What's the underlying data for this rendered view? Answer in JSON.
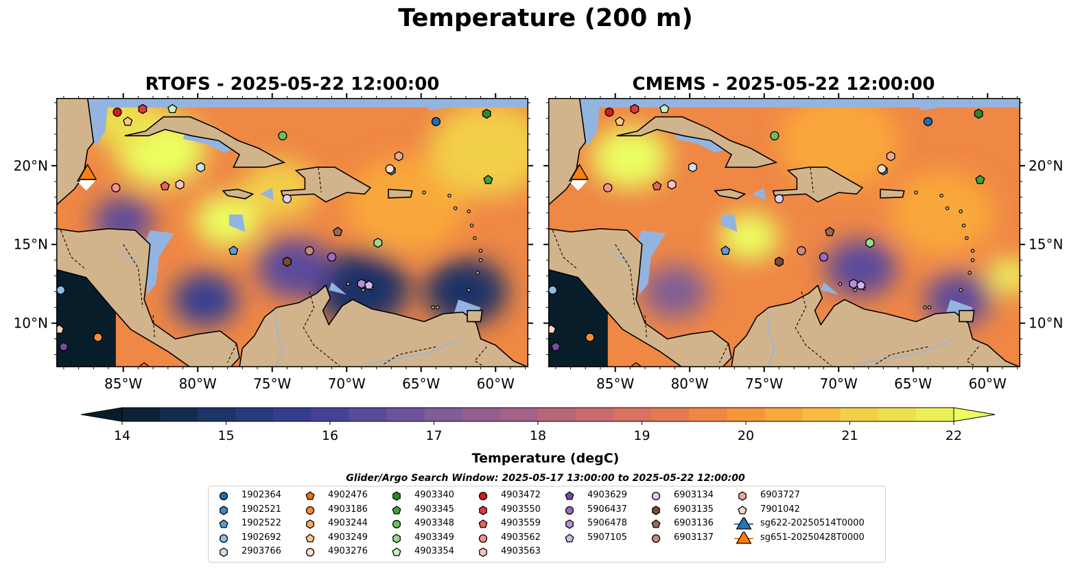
{
  "suptitle": "Temperature (200 m)",
  "panels": [
    {
      "title": "RTOFS - 2025-05-22 12:00:00"
    },
    {
      "title": "CMEMS - 2025-05-22 12:00:00"
    }
  ],
  "axes": {
    "lon_ticks": [
      "85°W",
      "80°W",
      "75°W",
      "70°W",
      "65°W",
      "60°W"
    ],
    "lat_ticks": [
      "20°N",
      "15°N",
      "10°N"
    ]
  },
  "colorbar": {
    "label": "Temperature (degC)",
    "ticks": [
      "14",
      "15",
      "16",
      "17",
      "18",
      "19",
      "20",
      "21",
      "22"
    ],
    "colors": [
      "#0b2236",
      "#132b4d",
      "#1c3366",
      "#273a80",
      "#353d92",
      "#47409a",
      "#5a4a9c",
      "#6d549a",
      "#7f5d96",
      "#925f8f",
      "#a46386",
      "#b6667a",
      "#c76c6e",
      "#d97260",
      "#e57a52",
      "#ef8745",
      "#f6963b",
      "#f9a83b",
      "#f8bc40",
      "#f2cf48",
      "#ecdf50",
      "#ebf05a"
    ],
    "extend_low": "#071e2a",
    "extend_high": "#ebff60"
  },
  "search_window": "Glider/Argo Search Window: 2025-05-17 13:00:00 to 2025-05-22 12:00:00",
  "legend": {
    "columns": [
      [
        {
          "label": "1902364",
          "marker": "circle",
          "color": "#1f6db0"
        },
        {
          "label": "1902521",
          "marker": "hexagon",
          "color": "#3d88c6"
        },
        {
          "label": "1902522",
          "marker": "pentagon",
          "color": "#5a9ed4"
        },
        {
          "label": "1902692",
          "marker": "circle",
          "color": "#8ebde6"
        },
        {
          "label": "2903766",
          "marker": "hexagon",
          "color": "#c9e1f4"
        }
      ],
      [
        {
          "label": "4902476",
          "marker": "pentagon",
          "color": "#ec7014"
        },
        {
          "label": "4903186",
          "marker": "circle",
          "color": "#f58c33"
        },
        {
          "label": "4903244",
          "marker": "hexagon",
          "color": "#f8a85c"
        },
        {
          "label": "4903249",
          "marker": "pentagon",
          "color": "#fbc68b"
        },
        {
          "label": "4903276",
          "marker": "circle",
          "color": "#fde0bd"
        }
      ],
      [
        {
          "label": "4903340",
          "marker": "hexagon",
          "color": "#2a8a2a"
        },
        {
          "label": "4903345",
          "marker": "pentagon",
          "color": "#3fa03f"
        },
        {
          "label": "4903348",
          "marker": "circle",
          "color": "#66c15d"
        },
        {
          "label": "4903349",
          "marker": "hexagon",
          "color": "#9ad990"
        },
        {
          "label": "4903354",
          "marker": "pentagon",
          "color": "#c8efc0"
        }
      ],
      [
        {
          "label": "4903472",
          "marker": "circle",
          "color": "#d01c21"
        },
        {
          "label": "4903550",
          "marker": "hexagon",
          "color": "#e0393a"
        },
        {
          "label": "4903559",
          "marker": "pentagon",
          "color": "#ec5f5c"
        },
        {
          "label": "4903562",
          "marker": "circle",
          "color": "#f59290"
        },
        {
          "label": "4903563",
          "marker": "hexagon",
          "color": "#fbc4c3"
        }
      ],
      [
        {
          "label": "4903629",
          "marker": "pentagon",
          "color": "#7a48a6"
        },
        {
          "label": "5906437",
          "marker": "circle",
          "color": "#9b6bc2"
        },
        {
          "label": "5906478",
          "marker": "hexagon",
          "color": "#b48fd8"
        },
        {
          "label": "5907105",
          "marker": "pentagon",
          "color": "#d0b7ea"
        }
      ],
      [
        {
          "label": "6903134",
          "marker": "circle",
          "color": "#e3cdf4"
        },
        {
          "label": "6903135",
          "marker": "hexagon",
          "color": "#7a4a38"
        },
        {
          "label": "6903136",
          "marker": "pentagon",
          "color": "#9b6a56"
        },
        {
          "label": "6903137",
          "marker": "circle",
          "color": "#c98a7a"
        }
      ],
      [
        {
          "label": "6903727",
          "marker": "hexagon",
          "color": "#e8aa92"
        },
        {
          "label": "7901042",
          "marker": "pentagon",
          "color": "#fbd6c8"
        },
        {
          "label": "sg622-20250514T0000",
          "marker": "triangle",
          "color": "#1f77b4"
        },
        {
          "label": "sg651-20250428T0000",
          "marker": "triangle",
          "color": "#ff7f0e"
        }
      ]
    ]
  },
  "chart_data": {
    "type": "heatmap",
    "variable": "Temperature",
    "units": "degC",
    "depth_m": 200,
    "colorbar_range": [
      14,
      22
    ],
    "lon_range": [
      -89.5,
      -57.8
    ],
    "lat_range": [
      7.2,
      24.3
    ],
    "maps": [
      {
        "model": "RTOFS",
        "time": "2025-05-22 12:00:00",
        "warm_cores": [
          {
            "lon": -82.5,
            "lat": 21.0,
            "temp": 22,
            "spread_deg": 3.0
          },
          {
            "lon": -78.0,
            "lat": 16.5,
            "temp": 22,
            "spread_deg": 2.2
          },
          {
            "lon": -74.5,
            "lat": 18.5,
            "temp": 21,
            "spread_deg": 2.5
          },
          {
            "lon": -66.0,
            "lat": 17.5,
            "temp": 20.5,
            "spread_deg": 4.0
          },
          {
            "lon": -60.5,
            "lat": 21.0,
            "temp": 21,
            "spread_deg": 4.0
          },
          {
            "lon": -85.0,
            "lat": 23.0,
            "temp": 21.5,
            "spread_deg": 2.5
          }
        ],
        "cool_cores": [
          {
            "lon": -79.5,
            "lat": 11.5,
            "temp": 15.5,
            "spread_deg": 2.2
          },
          {
            "lon": -69.0,
            "lat": 12.2,
            "temp": 15.0,
            "spread_deg": 3.2
          },
          {
            "lon": -62.0,
            "lat": 12.0,
            "temp": 15.0,
            "spread_deg": 2.8
          },
          {
            "lon": -73.5,
            "lat": 13.5,
            "temp": 16.5,
            "spread_deg": 2.5
          },
          {
            "lon": -85.0,
            "lat": 16.5,
            "temp": 16.5,
            "spread_deg": 2.0
          }
        ]
      },
      {
        "model": "CMEMS",
        "time": "2025-05-22 12:00:00",
        "warm_cores": [
          {
            "lon": -84.0,
            "lat": 20.5,
            "temp": 22,
            "spread_deg": 2.6
          },
          {
            "lon": -76.0,
            "lat": 15.5,
            "temp": 22,
            "spread_deg": 2.0
          },
          {
            "lon": -58.5,
            "lat": 13.0,
            "temp": 22,
            "spread_deg": 1.4
          },
          {
            "lon": -70.0,
            "lat": 21.5,
            "temp": 20.5,
            "spread_deg": 4.0
          },
          {
            "lon": -63.0,
            "lat": 17.0,
            "temp": 20.5,
            "spread_deg": 3.5
          }
        ],
        "cool_cores": [
          {
            "lon": -68.5,
            "lat": 13.5,
            "temp": 16.5,
            "spread_deg": 2.4
          },
          {
            "lon": -81.0,
            "lat": 12.0,
            "temp": 17.0,
            "spread_deg": 2.2
          },
          {
            "lon": -62.0,
            "lat": 11.5,
            "temp": 16.5,
            "spread_deg": 2.2
          }
        ]
      }
    ],
    "floats": [
      {
        "id": "1902364",
        "lon": -64.0,
        "lat": 22.8
      },
      {
        "id": "1902521",
        "lon": -67.0,
        "lat": 19.7
      },
      {
        "id": "1902522",
        "lon": -77.6,
        "lat": 14.6
      },
      {
        "id": "1902692",
        "lon": -89.2,
        "lat": 12.1
      },
      {
        "id": "2903766",
        "lon": -79.8,
        "lat": 19.9
      },
      {
        "id": "4902476",
        "lon": -83.6,
        "lat": 7.2
      },
      {
        "id": "4903186",
        "lon": -86.7,
        "lat": 9.1
      },
      {
        "id": "4903244",
        "lon": -74.0,
        "lat": 13.9
      },
      {
        "id": "4903249",
        "lon": -84.7,
        "lat": 22.8
      },
      {
        "id": "4903276",
        "lon": -67.1,
        "lat": 19.8
      },
      {
        "id": "4903340",
        "lon": -60.6,
        "lat": 23.3
      },
      {
        "id": "4903345",
        "lon": -60.5,
        "lat": 19.1
      },
      {
        "id": "4903348",
        "lon": -74.3,
        "lat": 21.9
      },
      {
        "id": "4903349",
        "lon": -67.9,
        "lat": 15.1
      },
      {
        "id": "4903354",
        "lon": -81.7,
        "lat": 23.6
      },
      {
        "id": "4903472",
        "lon": -85.4,
        "lat": 23.4
      },
      {
        "id": "4903550",
        "lon": -83.7,
        "lat": 23.6
      },
      {
        "id": "4903559",
        "lon": -82.2,
        "lat": 18.7
      },
      {
        "id": "4903562",
        "lon": -85.5,
        "lat": 18.6
      },
      {
        "id": "4903563",
        "lon": -81.2,
        "lat": 18.8
      },
      {
        "id": "4903629",
        "lon": -89.0,
        "lat": 8.5
      },
      {
        "id": "5906437",
        "lon": -71.0,
        "lat": 14.2
      },
      {
        "id": "5906478",
        "lon": -69.0,
        "lat": 12.5
      },
      {
        "id": "5907105",
        "lon": -68.5,
        "lat": 12.4
      },
      {
        "id": "6903134",
        "lon": -74.0,
        "lat": 17.9
      },
      {
        "id": "6903135",
        "lon": -74.0,
        "lat": 13.9
      },
      {
        "id": "6903136",
        "lon": -70.6,
        "lat": 15.8
      },
      {
        "id": "6903137",
        "lon": -72.5,
        "lat": 14.6
      },
      {
        "id": "6903727",
        "lon": -66.5,
        "lat": 20.6
      },
      {
        "id": "7901042",
        "lon": -89.3,
        "lat": 9.6
      }
    ],
    "gliders": [
      {
        "id": "sg622-20250514T0000",
        "lon": -87.5,
        "lat": 19.5
      },
      {
        "id": "sg651-20250428T0000",
        "lon": -87.4,
        "lat": 19.6
      }
    ]
  }
}
